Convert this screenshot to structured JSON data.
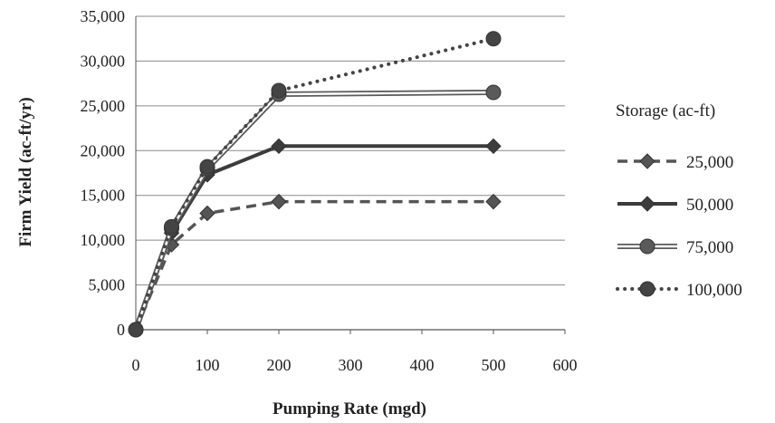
{
  "chart_data": {
    "type": "line",
    "title": "",
    "xlabel": "Pumping Rate (mgd)",
    "ylabel": "Firm Yield (ac-ft/yr)",
    "x_tick_labels": [
      "0",
      "100",
      "200",
      "300",
      "400",
      "500",
      "600"
    ],
    "y_tick_labels": [
      "0",
      "5,000",
      "10,000",
      "15,000",
      "20,000",
      "25,000",
      "30,000",
      "35,000"
    ],
    "xlim": [
      0,
      600
    ],
    "ylim": [
      0,
      35000
    ],
    "grid": "horizontal",
    "legend_title": "Storage (ac-ft)",
    "legend_position": "right",
    "x": [
      0,
      50,
      100,
      200,
      500
    ],
    "series": [
      {
        "name": "25,000",
        "values": [
          0,
          9500,
          13000,
          14300,
          14300
        ],
        "line": "dashed",
        "marker": "diamond",
        "color": "#555555"
      },
      {
        "name": "50,000",
        "values": [
          0,
          10800,
          17300,
          20500,
          20500
        ],
        "line": "solid",
        "marker": "diamond",
        "color": "#3c3c3c"
      },
      {
        "name": "75,000",
        "values": [
          0,
          11300,
          18000,
          26300,
          26500
        ],
        "line": "double",
        "marker": "circle",
        "color": "#5a5a5a"
      },
      {
        "name": "100,000",
        "values": [
          0,
          11500,
          18200,
          26700,
          32500
        ],
        "line": "dotted",
        "marker": "circle",
        "color": "#444444"
      }
    ]
  }
}
